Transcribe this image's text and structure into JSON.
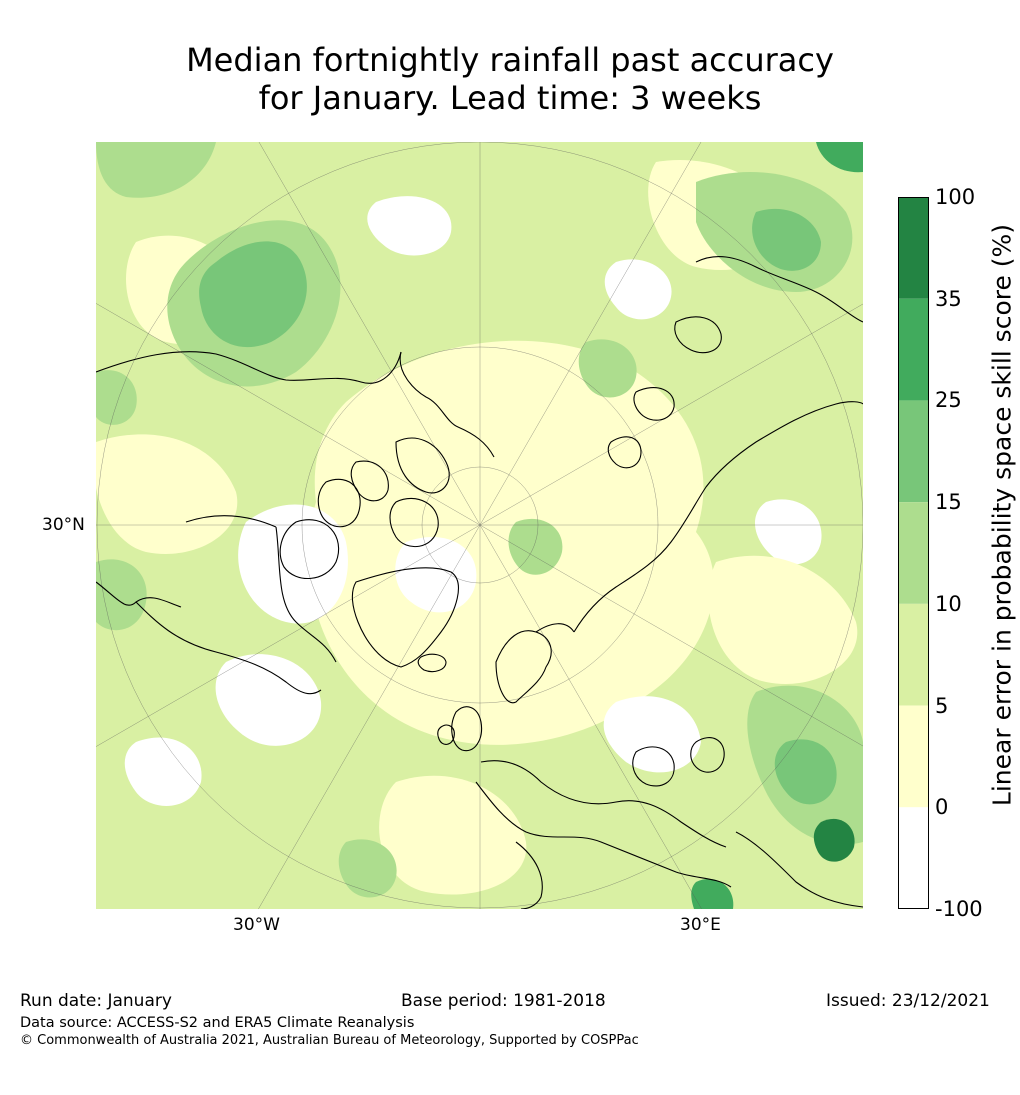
{
  "title": {
    "line1": "Median fortnightly rainfall past accuracy",
    "line2": "for January. Lead time: 3 weeks"
  },
  "map": {
    "projection": "north-polar-stereographic",
    "lat_labels": [
      {
        "text": "30°N"
      }
    ],
    "lon_labels": [
      {
        "text": "30°W"
      },
      {
        "text": "30°E"
      }
    ],
    "background_color": "#d9efa3"
  },
  "colorbar": {
    "label": "Linear error in probability space skill score (%)",
    "ticks": [
      "100",
      "35",
      "25",
      "15",
      "10",
      "5",
      "0",
      "-100"
    ],
    "bins": [
      {
        "from": "-100",
        "to": "0",
        "color": "#ffffff"
      },
      {
        "from": "0",
        "to": "5",
        "color": "#ffffcc"
      },
      {
        "from": "5",
        "to": "10",
        "color": "#d9f0a3"
      },
      {
        "from": "10",
        "to": "15",
        "color": "#addd8e"
      },
      {
        "from": "15",
        "to": "25",
        "color": "#78c679"
      },
      {
        "from": "25",
        "to": "35",
        "color": "#41ab5d"
      },
      {
        "from": "35",
        "to": "100",
        "color": "#238443"
      }
    ]
  },
  "footer": {
    "run_date": "Run date: January",
    "base_period": "Base period: 1981-2018",
    "issued": "Issued: 23/12/2021",
    "data_source": "Data source: ACCESS-S2 and ERA5 Climate Reanalysis",
    "copyright": "© Commonwealth of Australia 2021, Australian Bureau of Meteorology, Supported by COSPPac"
  }
}
